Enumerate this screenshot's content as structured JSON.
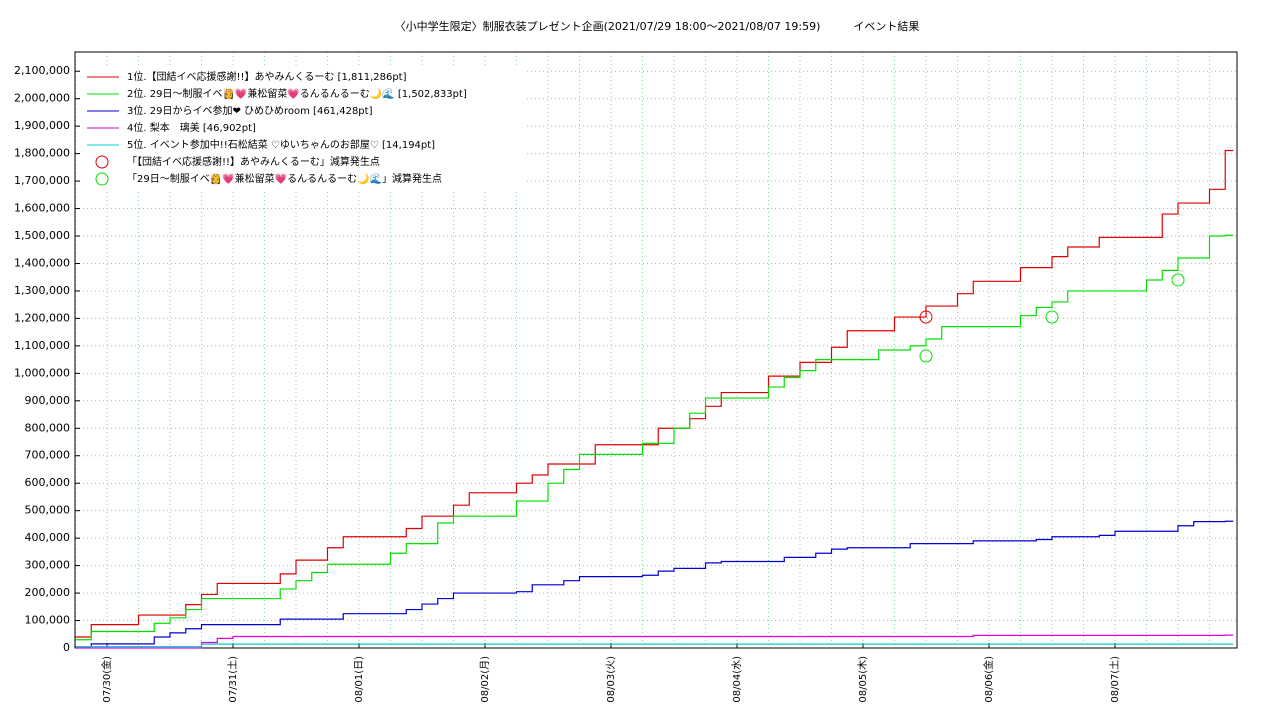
{
  "chart_data": {
    "type": "step-line",
    "title": "〈小中学生限定〉制服衣装プレゼント企画(2021/07/29 18:00〜2021/08/07 19:59)　　　イベント結果",
    "categories": [
      null,
      null,
      "07/30(金)",
      null,
      null,
      null,
      null,
      null,
      null,
      null,
      "07/31(土)",
      null,
      null,
      null,
      null,
      null,
      null,
      null,
      "08/01(日)",
      null,
      null,
      null,
      null,
      null,
      null,
      null,
      "08/02(月)",
      null,
      null,
      null,
      null,
      null,
      null,
      null,
      "08/03(火)",
      null,
      null,
      null,
      null,
      null,
      null,
      null,
      "08/04(水)",
      null,
      null,
      null,
      null,
      null,
      null,
      null,
      "08/05(木)",
      null,
      null,
      null,
      null,
      null,
      null,
      null,
      "08/06(金)",
      null,
      null,
      null,
      null,
      null,
      null,
      null,
      "08/07(土)",
      null,
      null,
      null,
      null,
      null,
      null,
      null
    ],
    "series": [
      {
        "name": "1位.【団結イベ応援感謝!!】あやみんくるーむ [1,811,286pt]",
        "color": "#e00000",
        "style": "step",
        "values": [
          40000,
          85000,
          85000,
          85000,
          120000,
          120000,
          120000,
          158000,
          195000,
          235000,
          235000,
          235000,
          235000,
          270000,
          320000,
          320000,
          365000,
          405000,
          405000,
          405000,
          405000,
          435000,
          480000,
          480000,
          520000,
          565000,
          565000,
          565000,
          600000,
          630000,
          670000,
          670000,
          670000,
          740000,
          740000,
          740000,
          740000,
          800000,
          800000,
          835000,
          880000,
          930000,
          930000,
          930000,
          990000,
          990000,
          1040000,
          1040000,
          1095000,
          1155000,
          1155000,
          1155000,
          1205000,
          1205000,
          1245000,
          1245000,
          1290000,
          1335000,
          1335000,
          1335000,
          1385000,
          1385000,
          1425000,
          1460000,
          1460000,
          1495000,
          1495000,
          1495000,
          1495000,
          1580000,
          1620000,
          1620000,
          1670000,
          1811286
        ]
      },
      {
        "name": "2位. 29日〜制服イベ👸💗兼松留菜💗るんるんるーむ🌙🌊 [1,502,833pt]",
        "color": "#00e000",
        "style": "step",
        "values": [
          30000,
          60000,
          60000,
          60000,
          60000,
          90000,
          110000,
          140000,
          180000,
          180000,
          180000,
          180000,
          180000,
          215000,
          245000,
          275000,
          305000,
          305000,
          305000,
          305000,
          345000,
          380000,
          380000,
          455000,
          480000,
          480000,
          480000,
          480000,
          535000,
          535000,
          600000,
          650000,
          705000,
          705000,
          705000,
          705000,
          745000,
          745000,
          800000,
          855000,
          910000,
          910000,
          910000,
          910000,
          950000,
          985000,
          1010000,
          1050000,
          1050000,
          1050000,
          1050000,
          1085000,
          1085000,
          1100000,
          1125000,
          1170000,
          1170000,
          1170000,
          1170000,
          1170000,
          1210000,
          1240000,
          1260000,
          1300000,
          1300000,
          1300000,
          1300000,
          1300000,
          1340000,
          1375000,
          1420000,
          1420000,
          1500000,
          1502833
        ]
      },
      {
        "name": "3位. 29日からイベ参加❤ ひめひめroom [461,428pt]",
        "color": "#0000d0",
        "style": "step",
        "values": [
          5000,
          15000,
          15000,
          15000,
          15000,
          40000,
          55000,
          70000,
          85000,
          85000,
          85000,
          85000,
          85000,
          105000,
          105000,
          105000,
          105000,
          125000,
          125000,
          125000,
          125000,
          140000,
          160000,
          180000,
          200000,
          200000,
          200000,
          200000,
          205000,
          230000,
          230000,
          245000,
          260000,
          260000,
          260000,
          260000,
          265000,
          280000,
          290000,
          290000,
          310000,
          315000,
          315000,
          315000,
          315000,
          330000,
          330000,
          345000,
          360000,
          365000,
          365000,
          365000,
          365000,
          380000,
          380000,
          380000,
          380000,
          390000,
          390000,
          390000,
          390000,
          395000,
          405000,
          405000,
          405000,
          410000,
          425000,
          425000,
          425000,
          425000,
          445000,
          460000,
          460000,
          461428
        ]
      },
      {
        "name": "4位. 梨本　璃美 [46,902pt]",
        "color": "#e000e0",
        "style": "step",
        "values": [
          0,
          0,
          0,
          0,
          0,
          0,
          0,
          0,
          20000,
          35000,
          42000,
          42000,
          42000,
          42000,
          42000,
          42000,
          42000,
          42000,
          42000,
          42000,
          42000,
          42000,
          42000,
          42000,
          42000,
          42000,
          42000,
          42000,
          42000,
          42000,
          42000,
          42000,
          42000,
          42000,
          42000,
          42000,
          42000,
          42000,
          42000,
          42000,
          42000,
          42000,
          42000,
          42000,
          42000,
          42000,
          42000,
          42000,
          42000,
          42000,
          42000,
          42000,
          42000,
          42000,
          42000,
          42000,
          42000,
          46000,
          46000,
          46000,
          46000,
          46000,
          46000,
          46000,
          46000,
          46000,
          46000,
          46000,
          46000,
          46000,
          46000,
          46000,
          46000,
          46902
        ]
      },
      {
        "name": "5位. イベント参加中!!石松結菜 ♡ゆいちゃんのお部屋♡ [14,194pt]",
        "color": "#00d0d0",
        "style": "step",
        "values": [
          5000,
          5000,
          5000,
          5000,
          5000,
          5000,
          5000,
          5000,
          14000,
          14000,
          14000,
          14000,
          14000,
          14000,
          14000,
          14000,
          14000,
          14000,
          14000,
          14000,
          14000,
          14000,
          14000,
          14000,
          14000,
          14000,
          14000,
          14000,
          14000,
          14000,
          14000,
          14000,
          14000,
          14000,
          14000,
          14000,
          14000,
          14000,
          14000,
          14000,
          14000,
          14000,
          14000,
          14000,
          14000,
          14000,
          14000,
          14000,
          14000,
          14000,
          14000,
          14000,
          14000,
          14000,
          14000,
          14000,
          14000,
          14000,
          14000,
          14000,
          14000,
          14000,
          14000,
          14000,
          14000,
          14000,
          14000,
          14000,
          14000,
          14000,
          14000,
          14000,
          14000,
          14194
        ]
      },
      {
        "name": "「【団結イベ応援感謝!!】あやみんくるーむ」減算発生点",
        "color": "#e00000",
        "style": "circle",
        "values": [
          null,
          null,
          null,
          null,
          null,
          null,
          null,
          null,
          null,
          null,
          null,
          null,
          null,
          null,
          null,
          null,
          null,
          null,
          null,
          null,
          null,
          null,
          null,
          null,
          null,
          null,
          null,
          null,
          null,
          null,
          null,
          null,
          null,
          null,
          null,
          null,
          null,
          null,
          null,
          null,
          null,
          null,
          null,
          null,
          null,
          null,
          null,
          null,
          null,
          null,
          null,
          null,
          null,
          null,
          1205000,
          null,
          null,
          null,
          null,
          null,
          null,
          null,
          null,
          null,
          null,
          null,
          null,
          null,
          null,
          null,
          null,
          null,
          null,
          null
        ]
      },
      {
        "name": "「29日〜制服イベ👸💗兼松留菜💗るんるんるーむ🌙🌊」減算発生点",
        "color": "#00e000",
        "style": "circle",
        "values": [
          null,
          null,
          null,
          null,
          null,
          null,
          null,
          null,
          null,
          null,
          null,
          null,
          null,
          null,
          null,
          null,
          null,
          null,
          null,
          null,
          null,
          null,
          null,
          null,
          null,
          null,
          null,
          null,
          null,
          null,
          null,
          null,
          null,
          null,
          null,
          null,
          null,
          null,
          null,
          null,
          null,
          null,
          null,
          null,
          null,
          null,
          null,
          null,
          null,
          null,
          null,
          null,
          null,
          null,
          1063000,
          null,
          null,
          null,
          null,
          null,
          null,
          null,
          1205000,
          null,
          null,
          null,
          null,
          null,
          null,
          null,
          1340000,
          null,
          null,
          null
        ]
      }
    ],
    "ylim": [
      0,
      2170000
    ],
    "yticks": [
      0,
      {
        "value": 100000,
        "label": "100,000"
      },
      {
        "value": 200000,
        "label": "200,000"
      },
      {
        "value": 300000,
        "label": "300,000"
      },
      {
        "value": 400000,
        "label": "400,000"
      },
      {
        "value": 500000,
        "label": "500,000"
      },
      {
        "value": 600000,
        "label": "600,000"
      },
      {
        "value": 700000,
        "label": "700,000"
      },
      {
        "value": 800000,
        "label": "800,000"
      },
      {
        "value": 900000,
        "label": "900,000"
      },
      {
        "value": 1000000,
        "label": "1,000,000"
      },
      {
        "value": 1100000,
        "label": "1,100,000"
      },
      {
        "value": 1200000,
        "label": "1,200,000"
      },
      {
        "value": 1300000,
        "label": "1,300,000"
      },
      {
        "value": 1400000,
        "label": "1,400,000"
      },
      {
        "value": 1500000,
        "label": "1,500,000"
      },
      {
        "value": 1600000,
        "label": "1,600,000"
      },
      {
        "value": 1700000,
        "label": "1,700,000"
      },
      {
        "value": 1800000,
        "label": "1,800,000"
      },
      {
        "value": 1900000,
        "label": "1,900,000"
      },
      {
        "value": 2000000,
        "label": "2,000,000"
      },
      {
        "value": 2100000,
        "label": "2,100,000"
      }
    ],
    "grid": true,
    "legend": "top-left"
  }
}
